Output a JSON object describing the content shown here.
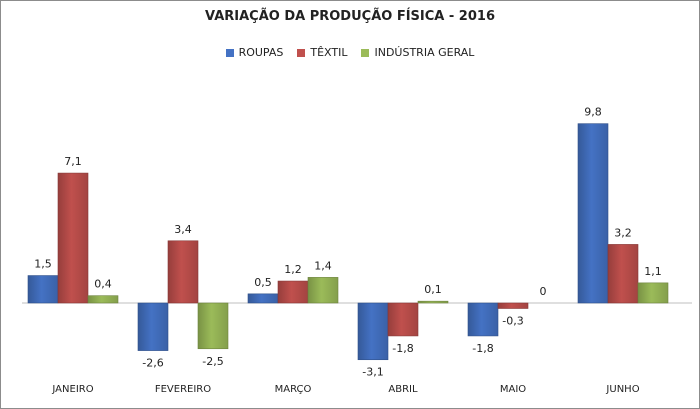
{
  "chart_data": {
    "type": "bar",
    "title": "VARIAÇÃO DA PRODUÇÃO FÍSICA - 2016",
    "xlabel": "",
    "ylabel": "",
    "categories": [
      "JANEIRO",
      "FEVEREIRO",
      "MARÇO",
      "ABRIL",
      "MAIO",
      "JUNHO"
    ],
    "series": [
      {
        "name": "ROUPAS",
        "color": "#4472C4",
        "values": [
          1.5,
          -2.6,
          0.5,
          -3.1,
          -1.8,
          9.8
        ],
        "labels": [
          "1,5",
          "-2,6",
          "0,5",
          "-3,1",
          "-1,8",
          "9,8"
        ]
      },
      {
        "name": "TÊXTIL",
        "color": "#C0504D",
        "values": [
          7.1,
          3.4,
          1.2,
          -1.8,
          -0.3,
          3.2
        ],
        "labels": [
          "7,1",
          "3,4",
          "1,2",
          "-1,8",
          "-0,3",
          "3,2"
        ]
      },
      {
        "name": "INDÚSTRIA GERAL",
        "color": "#9BBB59",
        "values": [
          0.4,
          -2.5,
          1.4,
          0.1,
          0,
          1.1
        ],
        "labels": [
          "0,4",
          "-2,5",
          "1,4",
          "0,1",
          "0",
          "1,1"
        ]
      }
    ],
    "ylim": [
      -4,
      11
    ],
    "grid": false,
    "legend": "top"
  }
}
